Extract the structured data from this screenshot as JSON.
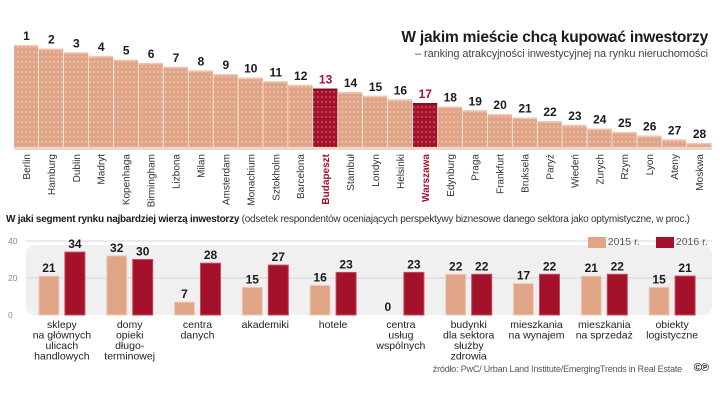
{
  "colors": {
    "bar_light": "#e0a487",
    "bar_highlight": "#a3112a",
    "bar_2015": "#e0a487",
    "bar_2016": "#a3112a",
    "panel_bg": "#f0f0f0",
    "highlight_text": "#a3112a",
    "text_dark": "#1a1a1a"
  },
  "header": {
    "title": "W jakim mieście chcą kupować inwestorzy",
    "subtitle": "– ranking atrakcyjności inwestycyjnej na rynku nieruchomości"
  },
  "segment_section": {
    "heading_bold": "W jaki segment rynku najbardziej wierzą inwestorzy",
    "heading_rest": " (odsetek respondentów oceniających perspektywy biznesowe danego sektora jako optymistyczne, w proc.)"
  },
  "legend": {
    "items": [
      {
        "label": "2015 r.",
        "color": "#e0a487"
      },
      {
        "label": "2016 r.",
        "color": "#a3112a"
      }
    ]
  },
  "source": {
    "text": "źródło: PwC/ Urban Land Institute/EmergingTrends in Real Estate",
    "icon": "copyright-cp-icon",
    "icon_glyph": "©℗"
  },
  "chart_data": [
    {
      "type": "bar",
      "title": "W jakim mieście chcą kupować inwestorzy",
      "subtitle": "– ranking atrakcyjności inwestycyjnej na rynku nieruchomości",
      "xlabel": "",
      "ylabel": "",
      "categories": [
        "Berlin",
        "Hamburg",
        "Dublin",
        "Madryt",
        "Kopenhaga",
        "Birmingham",
        "Lizbona",
        "Milan",
        "Amsterdam",
        "Monachium",
        "Sztokholm",
        "Barcelona",
        "Budapeszt",
        "Stambuł",
        "Londyn",
        "Helsinki",
        "Warszawa",
        "Edynburg",
        "Praga",
        "Frankfurt",
        "Bruksela",
        "Paryż",
        "Wiedeń",
        "Zurych",
        "Rzym",
        "Lyon",
        "Ateny",
        "Moskwa"
      ],
      "ranks": [
        1,
        2,
        3,
        4,
        5,
        6,
        7,
        8,
        9,
        10,
        11,
        12,
        13,
        14,
        15,
        16,
        17,
        18,
        19,
        20,
        21,
        22,
        23,
        24,
        25,
        26,
        27,
        28
      ],
      "highlighted": [
        "Budapeszt",
        "Warszawa"
      ],
      "grid": false,
      "legend": "none"
    },
    {
      "type": "bar",
      "title": "W jaki segment rynku najbardziej wierzą inwestorzy",
      "xlabel": "",
      "ylabel": "",
      "ylim": [
        0,
        40
      ],
      "yticks": [
        0,
        20,
        40
      ],
      "grid": true,
      "legend": "top-right",
      "categories": [
        "sklepy na głównych ulicach handlowych",
        "domy opieki długo-terminowej",
        "centra danych",
        "akademiki",
        "hotele",
        "centra usług wspólnych",
        "budynki dla sektora służby zdrowia",
        "mieszkania na wynajem",
        "mieszkania na sprzedaż",
        "obiekty logistyczne"
      ],
      "category_lines": [
        [
          "sklepy",
          "na głównych",
          "ulicach",
          "handlowych"
        ],
        [
          "domy",
          "opieki",
          "długo-",
          "terminowej"
        ],
        [
          "centra",
          "danych"
        ],
        [
          "akademiki"
        ],
        [
          "hotele"
        ],
        [
          "centra",
          "usług",
          "wspólnych"
        ],
        [
          "budynki",
          "dla sektora",
          "służby",
          "zdrowia"
        ],
        [
          "mieszkania",
          "na wynajem"
        ],
        [
          "mieszkania",
          "na sprzedaż"
        ],
        [
          "obiekty",
          "logistyczne"
        ]
      ],
      "series": [
        {
          "name": "2015 r.",
          "values": [
            21,
            32,
            7,
            15,
            16,
            0,
            22,
            17,
            21,
            15
          ]
        },
        {
          "name": "2016 r.",
          "values": [
            34,
            30,
            28,
            27,
            23,
            23,
            22,
            22,
            22,
            21
          ]
        }
      ]
    }
  ]
}
